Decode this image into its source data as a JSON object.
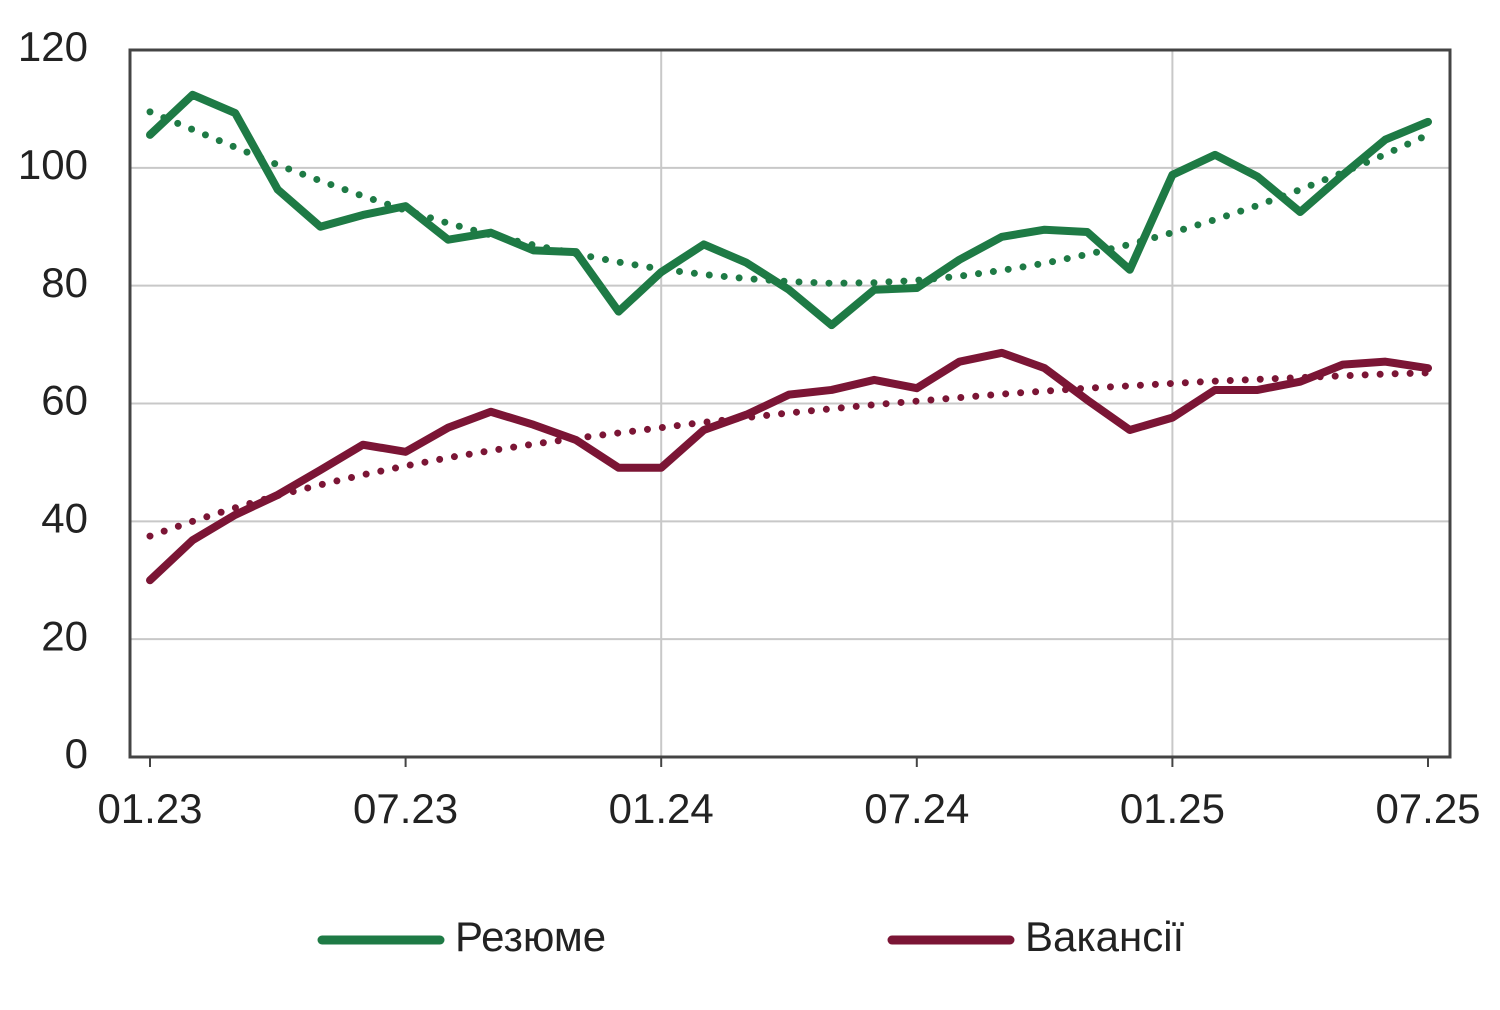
{
  "chart_data": {
    "type": "line",
    "categories": [
      "01.23",
      null,
      null,
      null,
      null,
      null,
      "07.23",
      null,
      null,
      null,
      null,
      null,
      "01.24",
      null,
      null,
      null,
      null,
      null,
      "07.24",
      null,
      null,
      null,
      null,
      null,
      "01.25",
      null,
      null,
      null,
      null,
      null,
      "07.25"
    ],
    "series": [
      {
        "name": "Резюме",
        "color": "#1e7a45",
        "style": "solid",
        "values": [
          105.6,
          112.4,
          109.3,
          96.3,
          90,
          92,
          93.5,
          87.8,
          89,
          86,
          85.7,
          75.6,
          82.3,
          87,
          83.9,
          79.3,
          73.3,
          79.3,
          79.6,
          84.4,
          88.3,
          89.5,
          89.1,
          82.7,
          98.8,
          102.2,
          98.5,
          92.5,
          98.8,
          104.8,
          107.8
        ]
      },
      {
        "name": "Вакансії",
        "color": "#7b1535",
        "style": "solid",
        "values": [
          30,
          36.8,
          41.1,
          44.5,
          48.7,
          53,
          51.8,
          55.9,
          58.6,
          56.4,
          53.8,
          49.1,
          49.1,
          55.5,
          58.1,
          61.5,
          62.3,
          64,
          62.6,
          67.1,
          68.6,
          66,
          60.6,
          55.5,
          57.6,
          62.3,
          62.3,
          63.7,
          66.6,
          67.1,
          66
        ]
      },
      {
        "color": "#1e7a45",
        "style": "dotted",
        "values": [
          109.5,
          106.5,
          103.5,
          100.5,
          97.8,
          95.2,
          92.8,
          90.6,
          88.6,
          86.9,
          85.4,
          84,
          82.8,
          81.9,
          81.2,
          80.7,
          80.4,
          80.5,
          80.9,
          81.6,
          82.6,
          83.8,
          85.3,
          87,
          89,
          91.2,
          93.6,
          96.3,
          99.2,
          102.3,
          105.6
        ]
      },
      {
        "color": "#7b1535",
        "style": "dotted",
        "values": [
          37.5,
          40,
          42.3,
          44.4,
          46.2,
          47.9,
          49.4,
          50.8,
          52,
          53.1,
          54.1,
          55,
          55.9,
          56.8,
          57.6,
          58.4,
          59.1,
          59.8,
          60.4,
          61,
          61.6,
          62.1,
          62.6,
          63,
          63.4,
          63.8,
          64.1,
          64.4,
          64.7,
          65,
          65.2
        ]
      }
    ],
    "ylim": [
      0,
      120
    ],
    "yticks": [
      0,
      20,
      40,
      60,
      80,
      100,
      120
    ],
    "grid": true,
    "legend": "bottom"
  }
}
